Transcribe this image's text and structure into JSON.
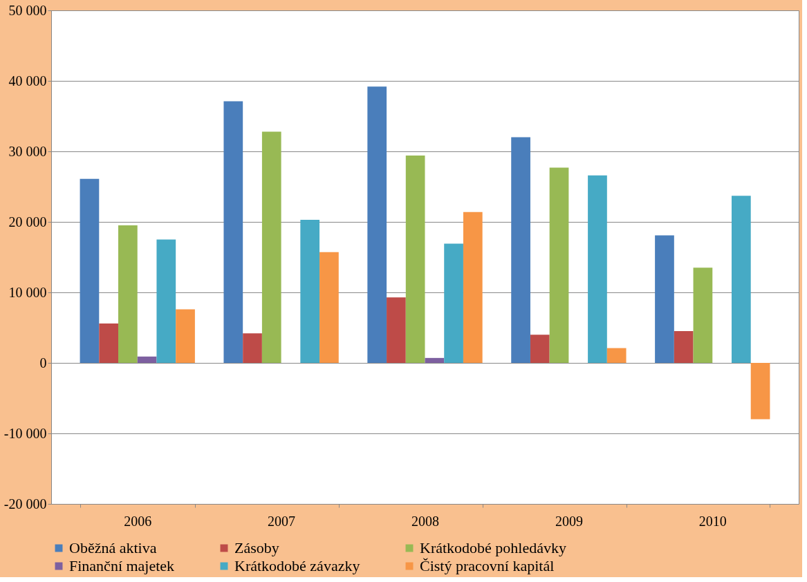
{
  "chart_data": {
    "type": "bar",
    "categories": [
      "2006",
      "2007",
      "2008",
      "2009",
      "2010"
    ],
    "series": [
      {
        "name": "Oběžná aktiva",
        "color": "#4a7ebb",
        "values": [
          26100,
          37100,
          39200,
          32000,
          18100
        ]
      },
      {
        "name": "Zásoby",
        "color": "#be4b48",
        "values": [
          5600,
          4200,
          9300,
          4000,
          4500
        ]
      },
      {
        "name": "Krátkodobé pohledávky",
        "color": "#98b954",
        "values": [
          19500,
          32800,
          29400,
          27700,
          13500
        ]
      },
      {
        "name": "Finanční majetek",
        "color": "#7d60a0",
        "values": [
          900,
          0,
          700,
          0,
          0
        ]
      },
      {
        "name": "Krátkodobé závazky",
        "color": "#46aac5",
        "values": [
          17500,
          20300,
          16900,
          26600,
          23700
        ]
      },
      {
        "name": "Čistý pracovní kapitál",
        "color": "#f79646",
        "values": [
          7600,
          15700,
          21400,
          2100,
          -8000
        ]
      }
    ],
    "ylim": [
      -20000,
      50000
    ],
    "yticks": [
      {
        "value": -20000,
        "label": "-20 000"
      },
      {
        "value": -10000,
        "label": "-10 000"
      },
      {
        "value": 0,
        "label": "0"
      },
      {
        "value": 10000,
        "label": "10 000"
      },
      {
        "value": 20000,
        "label": "20 000"
      },
      {
        "value": 30000,
        "label": "30 000"
      },
      {
        "value": 40000,
        "label": "40 000"
      },
      {
        "value": 50000,
        "label": "50 000"
      }
    ],
    "grid": "y",
    "legend": "bottom"
  }
}
